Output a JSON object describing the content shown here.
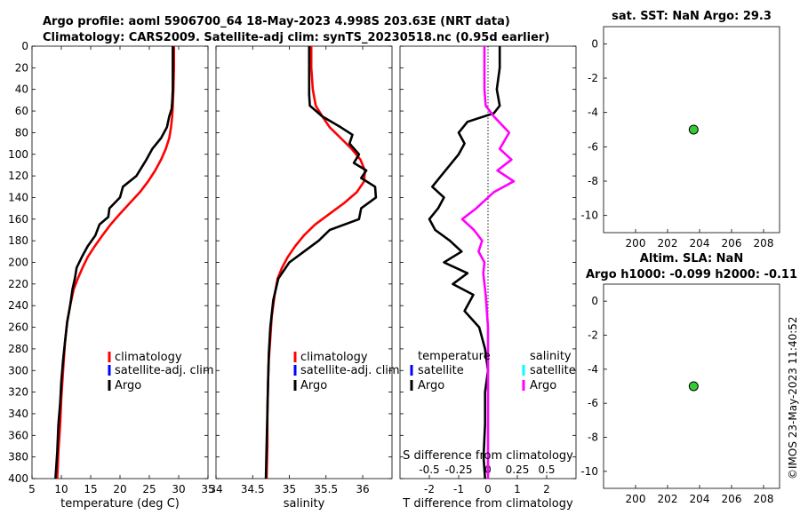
{
  "title": {
    "line1": "Argo profile: aoml 5906700_64 18-May-2023 4.998S 203.63E (NRT data)",
    "line2": "Climatology: CARS2009. Satellite-adj clim: synTS_20230518.nc (0.95d earlier)"
  },
  "footer": "©IMOS 23-May-2023 11:40:52",
  "colors": {
    "climatology": "#ff0000",
    "satellite_adj": "#0000ff",
    "argo": "#000000",
    "salinity_diff": "#ff00ff",
    "salinity_sat": "#00ffff",
    "marker": "#33cc33"
  },
  "chart_data": [
    {
      "id": "temperature",
      "type": "line",
      "xlabel": "temperature (deg C)",
      "ylabel": "",
      "xlim": [
        5,
        35
      ],
      "ylim": [
        0,
        400
      ],
      "y_reversed": true,
      "xticks": [
        5,
        10,
        15,
        20,
        25,
        30,
        35
      ],
      "yticks": [
        0,
        20,
        40,
        60,
        80,
        100,
        120,
        140,
        160,
        180,
        200,
        220,
        240,
        260,
        280,
        300,
        320,
        340,
        360,
        380,
        400
      ],
      "legend": [
        "climatology",
        "satellite-adj. clim",
        "Argo"
      ],
      "legend_position": "lower-right",
      "series": [
        {
          "name": "climatology",
          "color": "#ff0000",
          "x": [
            29.2,
            29.2,
            29.1,
            29.0,
            28.9,
            28.7,
            28.4,
            27.8,
            27.0,
            26.0,
            24.8,
            23.4,
            21.7,
            20.0,
            18.4,
            17.0,
            15.7,
            14.5,
            13.6,
            12.8,
            12.1,
            11.5,
            11.0,
            10.6,
            10.3,
            10.0,
            9.8,
            9.5,
            9.3
          ],
          "y": [
            0,
            20,
            40,
            55,
            65,
            75,
            85,
            95,
            105,
            115,
            125,
            135,
            145,
            155,
            165,
            175,
            185,
            195,
            205,
            215,
            225,
            240,
            255,
            275,
            300,
            325,
            350,
            375,
            400
          ]
        },
        {
          "name": "Argo",
          "color": "#000000",
          "x": [
            29.0,
            29.0,
            29.0,
            28.9,
            28.8,
            28.4,
            28.0,
            27.0,
            25.5,
            24.5,
            22.8,
            20.5,
            20.0,
            18.2,
            18.0,
            16.5,
            15.8,
            14.5,
            13.5,
            12.6,
            12.3,
            11.9,
            11.5,
            11.0,
            10.7,
            10.3,
            10.0,
            9.8,
            9.5,
            9.3,
            9.0
          ],
          "y": [
            0,
            20,
            40,
            52,
            58,
            65,
            75,
            85,
            95,
            105,
            120,
            130,
            140,
            150,
            158,
            165,
            175,
            185,
            195,
            205,
            215,
            225,
            240,
            255,
            270,
            290,
            310,
            330,
            350,
            375,
            400
          ]
        }
      ]
    },
    {
      "id": "salinity",
      "type": "line",
      "xlabel": "salinity",
      "xlim": [
        34,
        36.4
      ],
      "ylim": [
        0,
        400
      ],
      "y_reversed": true,
      "xticks": [
        34,
        34.5,
        35,
        35.5,
        36
      ],
      "xtick_labels": [
        "34",
        "34.5",
        "35",
        "35.5",
        "36"
      ],
      "yticks": [
        0,
        20,
        40,
        60,
        80,
        100,
        120,
        140,
        160,
        180,
        200,
        220,
        240,
        260,
        280,
        300,
        320,
        340,
        360,
        380,
        400
      ],
      "legend": [
        "climatology",
        "satellite-adj. clim",
        "Argo"
      ],
      "legend_position": "lower-right",
      "series": [
        {
          "name": "climatology",
          "color": "#ff0000",
          "x": [
            35.3,
            35.3,
            35.32,
            35.36,
            35.45,
            35.55,
            35.7,
            35.85,
            35.97,
            36.03,
            36.02,
            35.92,
            35.75,
            35.55,
            35.35,
            35.2,
            35.08,
            34.98,
            34.9,
            34.84,
            34.8,
            34.76,
            34.74,
            34.72,
            34.71,
            34.7,
            34.7,
            34.69
          ],
          "y": [
            0,
            20,
            40,
            55,
            65,
            75,
            85,
            95,
            105,
            115,
            125,
            135,
            145,
            155,
            165,
            175,
            185,
            195,
            205,
            215,
            230,
            250,
            270,
            290,
            310,
            340,
            370,
            400
          ]
        },
        {
          "name": "Argo",
          "color": "#000000",
          "x": [
            35.27,
            35.27,
            35.27,
            35.28,
            35.45,
            35.7,
            35.86,
            35.82,
            35.95,
            35.88,
            36.05,
            35.98,
            36.17,
            36.18,
            35.98,
            35.95,
            35.55,
            35.4,
            35.2,
            35.0,
            34.85,
            34.78,
            34.74,
            34.72,
            34.71,
            34.7,
            34.69,
            34.68
          ],
          "y": [
            0,
            20,
            45,
            55,
            65,
            75,
            82,
            90,
            100,
            108,
            115,
            122,
            130,
            140,
            150,
            160,
            170,
            180,
            190,
            200,
            215,
            235,
            260,
            285,
            310,
            340,
            370,
            400
          ]
        }
      ]
    },
    {
      "id": "difference",
      "type": "line",
      "xlabel": "T difference from climatology",
      "top_label": "S difference from climatology",
      "xlim": [
        -3,
        3
      ],
      "ylim": [
        0,
        400
      ],
      "y_reversed": true,
      "xticks": [
        -2,
        -1,
        0,
        1,
        2
      ],
      "xtick_labels": [
        "-2",
        "-1",
        "0",
        "1",
        "2"
      ],
      "s_ticks": [
        -0.5,
        -0.25,
        0,
        0.25,
        0.5
      ],
      "s_tick_labels": [
        "-0.5",
        "-0.25",
        "0",
        "0.25",
        "0.5"
      ],
      "yticks": [
        0,
        20,
        40,
        60,
        80,
        100,
        120,
        140,
        160,
        180,
        200,
        220,
        240,
        260,
        280,
        300,
        320,
        340,
        360,
        380,
        400
      ],
      "legend_headers": [
        "temperature",
        "salinity"
      ],
      "legend_left": [
        "satellite",
        "Argo"
      ],
      "legend_right": [
        "satellite",
        "Argo"
      ],
      "series": [
        {
          "name": "T difference (Argo)",
          "color": "#000000",
          "x": [
            0.4,
            0.4,
            0.3,
            0.4,
            0.2,
            -0.7,
            -1.0,
            -0.8,
            -1.0,
            -1.3,
            -1.6,
            -1.9,
            -1.5,
            -1.7,
            -2.0,
            -1.8,
            -1.3,
            -0.9,
            -1.5,
            -0.7,
            -1.2,
            -0.5,
            -0.8,
            -0.3,
            -0.1,
            0.0,
            -0.1,
            -0.1,
            -0.15,
            -0.1
          ],
          "y": [
            0,
            20,
            40,
            55,
            62,
            70,
            80,
            90,
            100,
            110,
            120,
            130,
            140,
            150,
            160,
            170,
            180,
            190,
            200,
            210,
            220,
            230,
            245,
            260,
            280,
            300,
            320,
            350,
            380,
            400
          ]
        },
        {
          "name": "S difference (Argo)",
          "color": "#ff00ff",
          "x": [
            -0.03,
            -0.03,
            -0.03,
            -0.02,
            0.05,
            0.18,
            0.1,
            0.2,
            0.08,
            0.22,
            0.05,
            0.0,
            -0.1,
            -0.22,
            -0.12,
            -0.05,
            -0.08,
            -0.03,
            -0.04,
            -0.02,
            0.0,
            0.0,
            0.0,
            0.0,
            0.0
          ],
          "y": [
            0,
            20,
            40,
            55,
            65,
            80,
            95,
            105,
            115,
            125,
            135,
            140,
            150,
            160,
            170,
            180,
            190,
            200,
            210,
            230,
            260,
            290,
            320,
            360,
            400
          ]
        }
      ]
    },
    {
      "id": "sst",
      "type": "scatter",
      "title": "sat. SST: NaN Argo: 29.3",
      "xlim": [
        198,
        209
      ],
      "ylim": [
        -11,
        1
      ],
      "xticks": [
        200,
        202,
        204,
        206,
        208
      ],
      "yticks": [
        0,
        -2,
        -4,
        -6,
        -8,
        -10
      ],
      "points": [
        {
          "x": 203.63,
          "y": -4.998
        }
      ]
    },
    {
      "id": "sla",
      "type": "scatter",
      "title_line1": "Altim. SLA: NaN",
      "title_line2": "Argo h1000: -0.099 h2000: -0.11",
      "xlim": [
        198,
        209
      ],
      "ylim": [
        -11,
        1
      ],
      "xticks": [
        200,
        202,
        204,
        206,
        208
      ],
      "yticks": [
        0,
        -2,
        -4,
        -6,
        -8,
        -10
      ],
      "points": [
        {
          "x": 203.63,
          "y": -4.998
        }
      ]
    }
  ]
}
